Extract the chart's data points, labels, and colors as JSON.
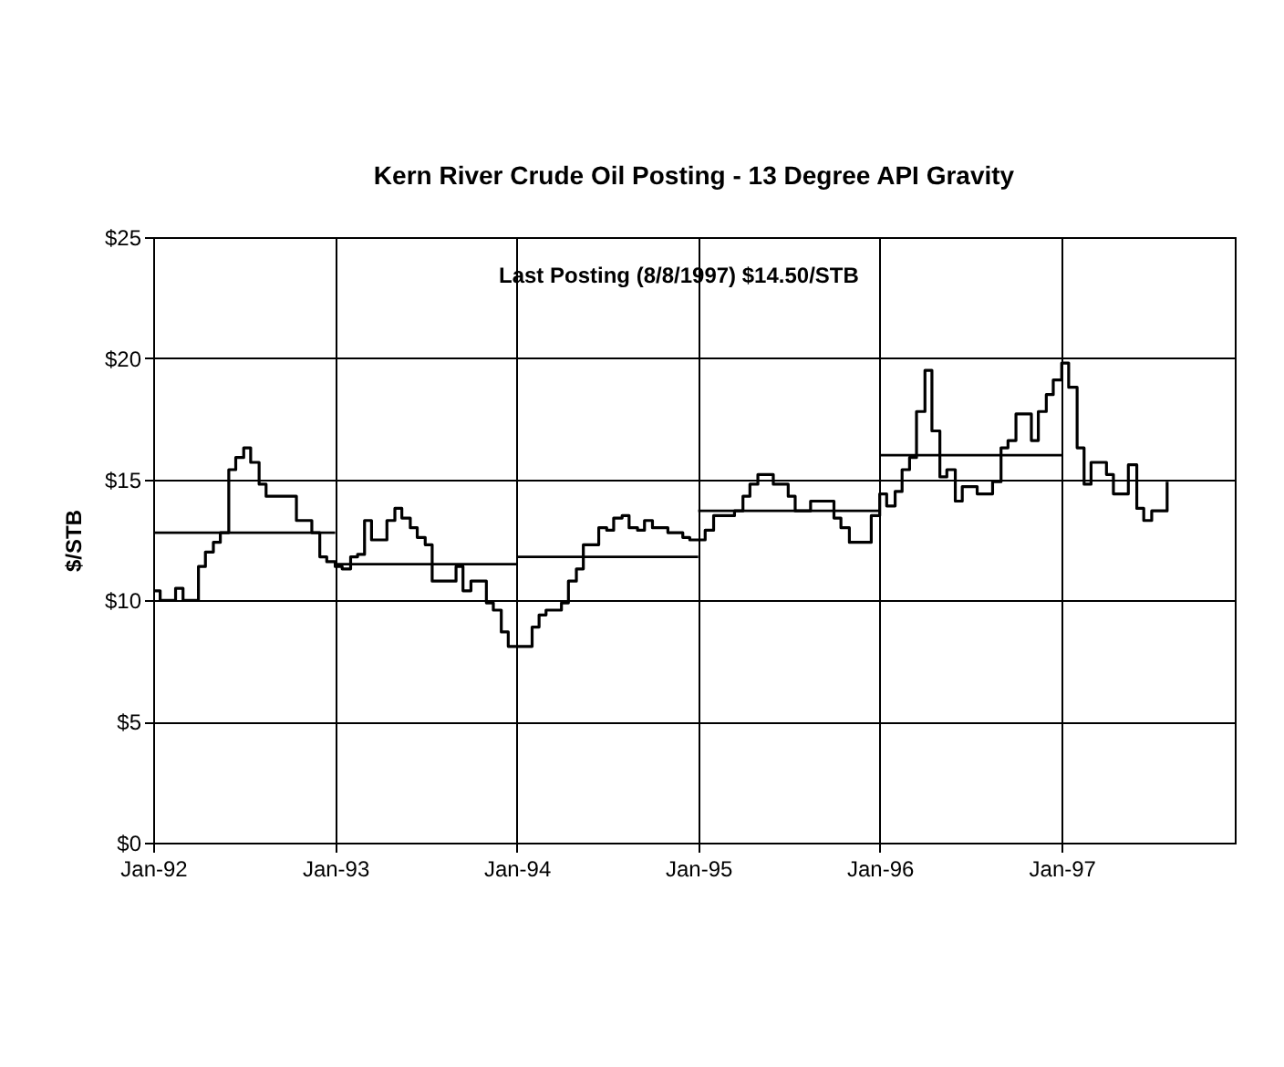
{
  "chart_data": {
    "type": "step",
    "title": "Kern River Crude Oil Posting - 13 Degree API Gravity",
    "ylabel": "$/STB",
    "annotations": [
      "Last Posting (8/8/1997)  $14.50/STB"
    ],
    "xlim": [
      "1992-01-01",
      "1997-12-15"
    ],
    "xticks": [
      {
        "value": "1992-01-01",
        "label": "Jan-92"
      },
      {
        "value": "1993-01-01",
        "label": "Jan-93"
      },
      {
        "value": "1994-01-01",
        "label": "Jan-94"
      },
      {
        "value": "1995-01-01",
        "label": "Jan-95"
      },
      {
        "value": "1996-01-01",
        "label": "Jan-96"
      },
      {
        "value": "1997-01-01",
        "label": "Jan-97"
      }
    ],
    "ylim": [
      0,
      25
    ],
    "yticks": [
      {
        "value": 0,
        "label": "$0"
      },
      {
        "value": 5,
        "label": "$5"
      },
      {
        "value": 10,
        "label": "$10"
      },
      {
        "value": 15,
        "label": "$15"
      },
      {
        "value": 20,
        "label": "$20"
      },
      {
        "value": 25,
        "label": "$25"
      }
    ],
    "grid": true,
    "series": [
      {
        "color": "#000000",
        "x": [
          "1992-01-01",
          "1992-01-15",
          "1992-02-01",
          "1992-02-15",
          "1992-03-01",
          "1992-03-15",
          "1992-04-01",
          "1992-04-15",
          "1992-05-01",
          "1992-05-15",
          "1992-06-01",
          "1992-06-15",
          "1992-07-01",
          "1992-07-15",
          "1992-08-01",
          "1992-08-15",
          "1992-09-01",
          "1992-10-01",
          "1992-10-15",
          "1992-11-01",
          "1992-11-15",
          "1992-12-01",
          "1992-12-15",
          "1993-01-01",
          "1993-01-15",
          "1993-02-01",
          "1993-02-15",
          "1993-03-01",
          "1993-03-15",
          "1993-04-01",
          "1993-04-15",
          "1993-05-01",
          "1993-05-15",
          "1993-06-01",
          "1993-06-15",
          "1993-07-01",
          "1993-07-15",
          "1993-08-15",
          "1993-09-01",
          "1993-09-15",
          "1993-10-01",
          "1993-10-15",
          "1993-11-01",
          "1993-11-15",
          "1993-12-01",
          "1993-12-15",
          "1994-01-15",
          "1994-02-01",
          "1994-02-15",
          "1994-03-01",
          "1994-03-15",
          "1994-04-01",
          "1994-04-15",
          "1994-05-01",
          "1994-05-15",
          "1994-06-01",
          "1994-06-15",
          "1994-07-01",
          "1994-07-15",
          "1994-08-01",
          "1994-08-15",
          "1994-09-01",
          "1994-09-15",
          "1994-10-01",
          "1994-11-01",
          "1994-12-01",
          "1994-12-15",
          "1995-01-15",
          "1995-02-01",
          "1995-03-01",
          "1995-03-15",
          "1995-04-01",
          "1995-04-15",
          "1995-05-01",
          "1995-05-15",
          "1995-06-01",
          "1995-07-01",
          "1995-07-15",
          "1995-08-01",
          "1995-08-15",
          "1995-09-15",
          "1995-10-01",
          "1995-10-15",
          "1995-11-01",
          "1995-12-01",
          "1995-12-15",
          "1996-01-01",
          "1996-01-15",
          "1996-02-01",
          "1996-02-15",
          "1996-03-01",
          "1996-03-15",
          "1996-04-01",
          "1996-04-15",
          "1996-05-01",
          "1996-05-15",
          "1996-06-01",
          "1996-06-15",
          "1996-07-01",
          "1996-07-15",
          "1996-08-01",
          "1996-08-15",
          "1996-09-01",
          "1996-09-15",
          "1996-10-01",
          "1996-10-15",
          "1996-11-01",
          "1996-11-15",
          "1996-12-01",
          "1996-12-15",
          "1997-01-01",
          "1997-01-15",
          "1997-02-01",
          "1997-02-15",
          "1997-03-01",
          "1997-03-15",
          "1997-04-01",
          "1997-04-15",
          "1997-05-01",
          "1997-05-15",
          "1997-06-01",
          "1997-06-15",
          "1997-07-01",
          "1997-07-15",
          "1997-08-01"
        ],
        "values": [
          10.4,
          10.0,
          10.0,
          10.5,
          10.0,
          10.0,
          11.4,
          12.0,
          12.4,
          12.8,
          15.4,
          15.9,
          16.3,
          15.7,
          14.8,
          14.3,
          14.3,
          14.3,
          13.3,
          13.3,
          12.8,
          11.8,
          11.6,
          11.4,
          11.3,
          11.8,
          11.9,
          13.3,
          12.5,
          12.5,
          13.3,
          13.8,
          13.4,
          13.0,
          12.6,
          12.3,
          10.8,
          10.8,
          11.4,
          10.4,
          10.8,
          10.8,
          9.9,
          9.6,
          8.7,
          8.1,
          8.1,
          8.9,
          9.4,
          9.6,
          9.6,
          9.9,
          10.8,
          11.3,
          12.3,
          12.3,
          13.0,
          12.9,
          13.4,
          13.5,
          13.0,
          12.9,
          13.3,
          13.0,
          12.8,
          12.6,
          12.5,
          12.9,
          13.5,
          13.5,
          13.7,
          14.3,
          14.8,
          15.2,
          15.2,
          14.8,
          14.3,
          13.7,
          13.7,
          14.1,
          14.1,
          13.4,
          13.0,
          12.4,
          12.4,
          13.5,
          14.4,
          13.9,
          14.5,
          15.4,
          15.9,
          17.8,
          19.5,
          17.0,
          15.1,
          15.4,
          14.1,
          14.7,
          14.7,
          14.4,
          14.4,
          14.9,
          16.3,
          16.6,
          17.7,
          17.7,
          16.6,
          17.8,
          18.5,
          19.1,
          19.8,
          18.8,
          16.3,
          14.8,
          15.7,
          15.7,
          15.2,
          14.4,
          14.4,
          15.6,
          13.8,
          13.3,
          13.7,
          13.7,
          14.9
        ]
      },
      {
        "type": "line",
        "color": "#000000",
        "x": [
          "1992-01-01",
          "1993-01-01"
        ],
        "values": [
          12.8,
          12.8
        ]
      },
      {
        "type": "line",
        "color": "#000000",
        "x": [
          "1993-01-01",
          "1994-01-01"
        ],
        "values": [
          11.5,
          11.5
        ]
      },
      {
        "type": "line",
        "color": "#000000",
        "x": [
          "1994-01-01",
          "1995-01-01"
        ],
        "values": [
          11.8,
          11.8
        ]
      },
      {
        "type": "line",
        "color": "#000000",
        "x": [
          "1995-01-01",
          "1996-01-01"
        ],
        "values": [
          13.7,
          13.7
        ]
      },
      {
        "type": "line",
        "color": "#000000",
        "x": [
          "1996-01-01",
          "1997-01-01"
        ],
        "values": [
          16.0,
          16.0
        ]
      }
    ]
  }
}
